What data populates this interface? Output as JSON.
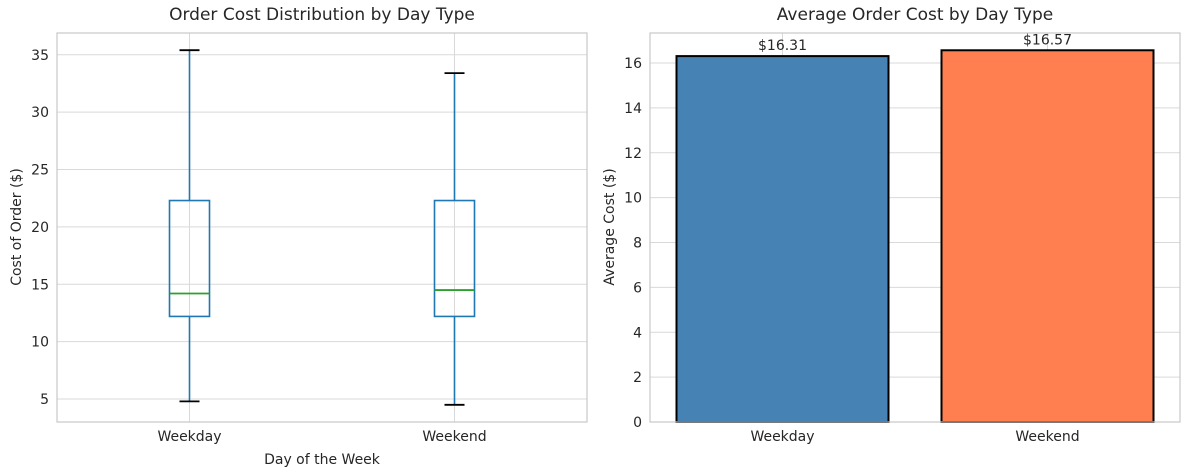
{
  "figure": {
    "background": "#ffffff",
    "grid_color": "#d9d9d9",
    "spine_color": "#c8c8c8",
    "text_color": "#262626"
  },
  "chart_data": [
    {
      "type": "boxplot",
      "title": "Order Cost Distribution by Day Type",
      "xlabel": "Day of the Week",
      "ylabel": "Cost of Order ($)",
      "categories": [
        "Weekday",
        "Weekend"
      ],
      "series": [
        {
          "name": "Weekday",
          "whisker_low": 4.8,
          "q1": 12.2,
          "median": 14.2,
          "q3": 22.3,
          "whisker_high": 35.4
        },
        {
          "name": "Weekend",
          "whisker_low": 4.5,
          "q1": 12.2,
          "median": 14.5,
          "q3": 22.3,
          "whisker_high": 33.4
        }
      ],
      "ylim": [
        3.0,
        36.9
      ],
      "yticks": [
        5,
        10,
        15,
        20,
        25,
        30,
        35
      ],
      "grid": true,
      "colors": {
        "box_line": "#1f77b4",
        "whisker_line": "#1f77b4",
        "median_line": "#2ca02c",
        "cap_line": "#000000"
      }
    },
    {
      "type": "bar",
      "title": "Average Order Cost by Day Type",
      "xlabel": "",
      "ylabel": "Average Cost ($)",
      "categories": [
        "Weekday",
        "Weekend"
      ],
      "values": [
        16.31,
        16.57
      ],
      "value_labels": [
        "$16.31",
        "$16.57"
      ],
      "bar_colors": [
        "#4682b4",
        "#ff7f50"
      ],
      "bar_edge_color": "#000000",
      "ylim": [
        0,
        17.34
      ],
      "yticks": [
        0,
        2,
        4,
        6,
        8,
        10,
        12,
        14,
        16
      ],
      "grid": true
    }
  ]
}
